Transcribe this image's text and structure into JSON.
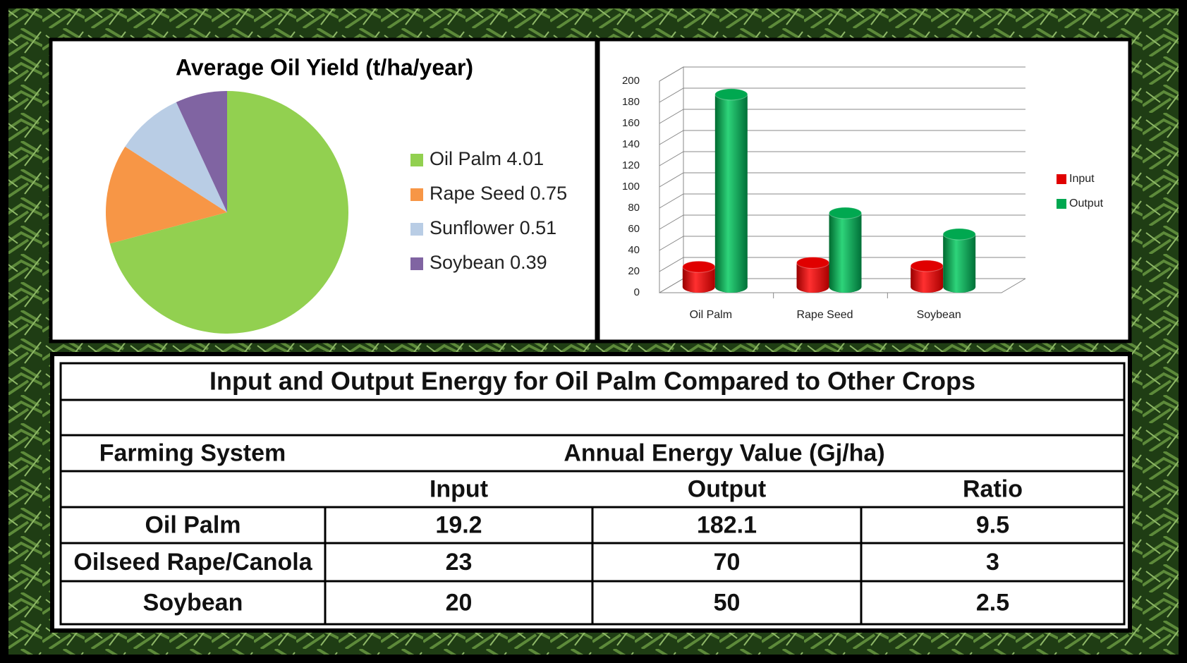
{
  "chart_data": [
    {
      "type": "pie",
      "title": "Average Oil Yield (t/ha/year)",
      "categories": [
        "Oil Palm",
        "Rape Seed",
        "Sunflower",
        "Soybean"
      ],
      "values": [
        4.01,
        0.75,
        0.51,
        0.39
      ],
      "colors": [
        "#92d050",
        "#f79646",
        "#b9cde5",
        "#8064a2"
      ],
      "legend": "right"
    },
    {
      "type": "bar3d",
      "categories": [
        "Oil Palm",
        "Rape Seed",
        "Soybean"
      ],
      "series": [
        {
          "name": "Input",
          "color": "#e00000",
          "values": [
            19.2,
            23,
            20
          ]
        },
        {
          "name": "Output",
          "color": "#00a850",
          "values": [
            182.1,
            70,
            50
          ]
        }
      ],
      "ylim": [
        0,
        200
      ],
      "yticks": [
        0,
        20,
        40,
        60,
        80,
        100,
        120,
        140,
        160,
        180,
        200
      ],
      "grid": true,
      "legend": "right"
    }
  ],
  "table": {
    "title": "Input and Output Energy for Oil Palm Compared to Other Crops",
    "header": [
      "Farming System",
      "Annual Energy Value (Gj/ha)"
    ],
    "subheader": [
      "Input",
      "Output",
      "Ratio"
    ],
    "rows": [
      [
        "Oil Palm",
        19.2,
        182.1,
        9.5
      ],
      [
        "Oilseed Rape/Canola",
        23,
        70,
        3
      ],
      [
        "Soybean",
        20,
        50,
        2.5
      ]
    ]
  }
}
